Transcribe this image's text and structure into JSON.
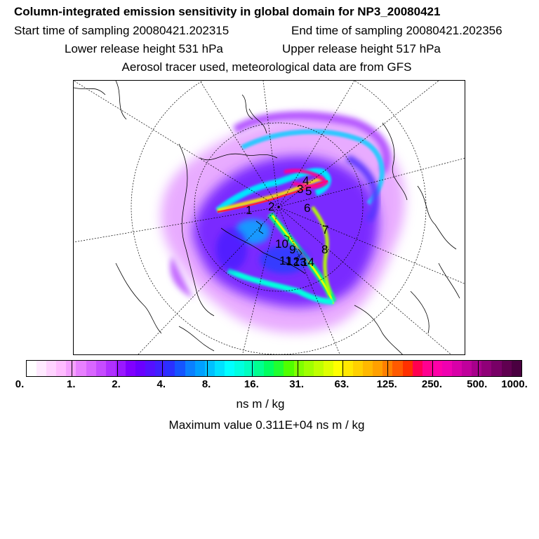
{
  "header": {
    "title": "Column-integrated emission sensitivity in global domain for NP3_20080421",
    "start_time": "Start time of sampling 20080421.202315",
    "end_time": "End time of sampling 20080421.202356",
    "lower_release": "Lower release height  531 hPa",
    "upper_release": "Upper release height  517 hPa",
    "tracer_note": "Aerosol tracer used, meteorological data are from GFS"
  },
  "map": {
    "projection": "north-polar-stereographic",
    "point_labels": [
      "1",
      "2",
      "3",
      "4",
      "5",
      "6",
      "7",
      "8",
      "9",
      "10",
      "11",
      "12",
      "13",
      "14"
    ]
  },
  "colorbar": {
    "tick_labels": [
      "0.",
      "1.",
      "2.",
      "4.",
      "8.",
      "16.",
      "31.",
      "63.",
      "125.",
      "250.",
      "500.",
      "1000."
    ],
    "colors": [
      "#ffffff",
      "#ffeaff",
      "#ffd3ff",
      "#ffbcff",
      "#f6a0ff",
      "#e880ff",
      "#d966ff",
      "#c64cff",
      "#b030ff",
      "#9a18ff",
      "#8000ff",
      "#6a00ff",
      "#5510ff",
      "#4020ff",
      "#2a30ff",
      "#1555ff",
      "#0a80ff",
      "#00a0ff",
      "#00c0ff",
      "#00e0ff",
      "#00ffff",
      "#00ffe0",
      "#00ffc0",
      "#00ff90",
      "#00ff60",
      "#20ff30",
      "#50ff00",
      "#80ff00",
      "#a0ff00",
      "#c0ff00",
      "#e0ff00",
      "#ffff00",
      "#ffe800",
      "#ffd000",
      "#ffb800",
      "#ffa000",
      "#ff8000",
      "#ff5a00",
      "#ff3000",
      "#ff0050",
      "#ff0090",
      "#ff00a8",
      "#f000b0",
      "#d800a8",
      "#c0009c",
      "#a8008c",
      "#900078",
      "#780066",
      "#600050",
      "#4a0040"
    ]
  },
  "units": "ns m / kg",
  "maximum": "Maximum value  0.311E+04 ns m / kg"
}
